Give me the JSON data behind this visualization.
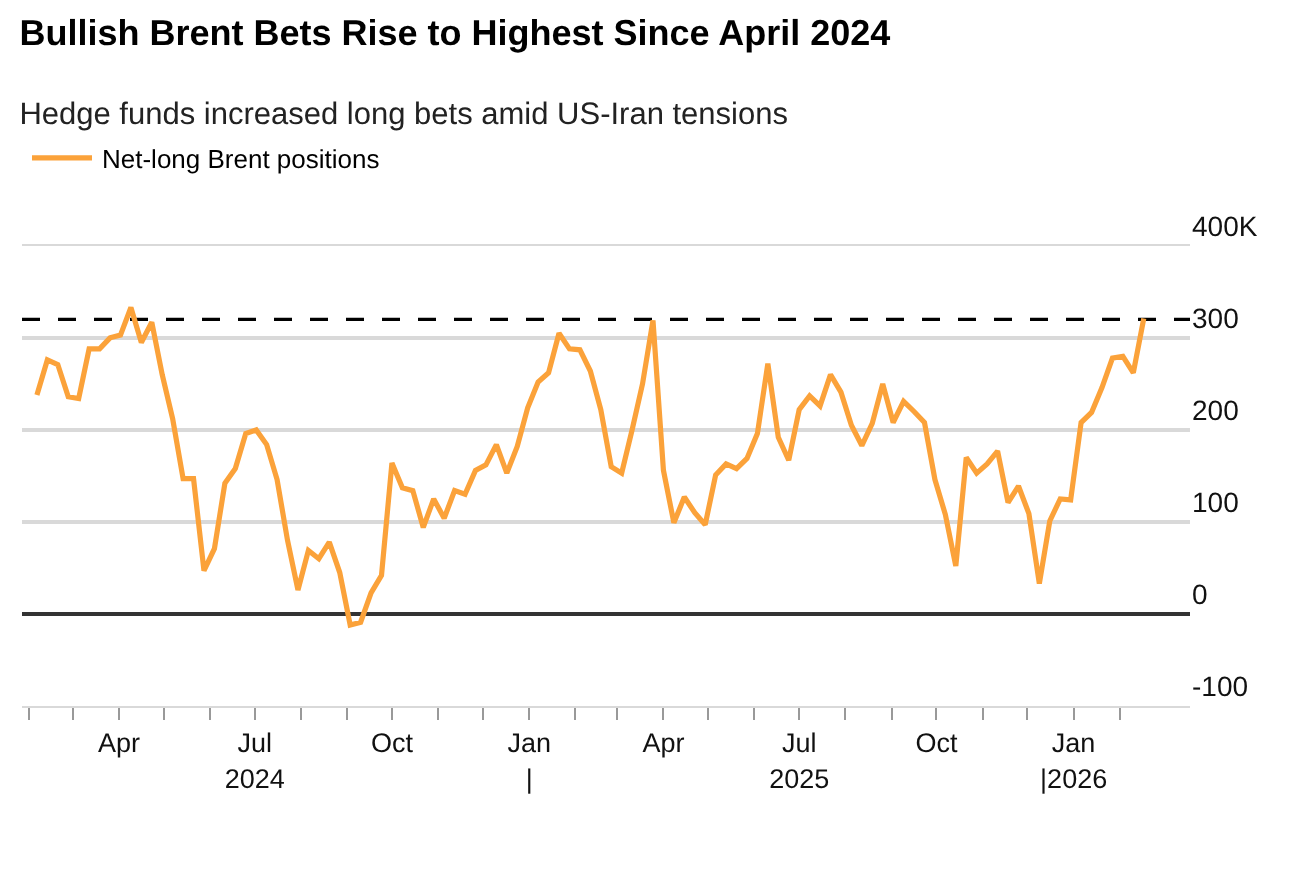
{
  "chart_data": {
    "type": "line",
    "title": "Bullish Brent Bets Rise to Highest Since April 2024",
    "subtitle": "Hedge funds increased long bets amid US-Iran tensions",
    "x": [
      "2024-02-06",
      "2024-02-13",
      "2024-02-20",
      "2024-02-27",
      "2024-03-05",
      "2024-03-12",
      "2024-03-19",
      "2024-03-26",
      "2024-04-02",
      "2024-04-09",
      "2024-04-16",
      "2024-04-23",
      "2024-04-30",
      "2024-05-07",
      "2024-05-14",
      "2024-05-21",
      "2024-05-28",
      "2024-06-04",
      "2024-06-11",
      "2024-06-18",
      "2024-06-25",
      "2024-07-02",
      "2024-07-09",
      "2024-07-16",
      "2024-07-23",
      "2024-07-30",
      "2024-08-06",
      "2024-08-13",
      "2024-08-20",
      "2024-08-27",
      "2024-09-03",
      "2024-09-10",
      "2024-09-17",
      "2024-09-24",
      "2024-10-01",
      "2024-10-08",
      "2024-10-15",
      "2024-10-22",
      "2024-10-29",
      "2024-11-05",
      "2024-11-12",
      "2024-11-19",
      "2024-11-26",
      "2024-12-03",
      "2024-12-10",
      "2024-12-17",
      "2024-12-24",
      "2024-12-31",
      "2025-01-07",
      "2025-01-14",
      "2025-01-21",
      "2025-01-28",
      "2025-02-04",
      "2025-02-11",
      "2025-02-18",
      "2025-02-25",
      "2025-03-04",
      "2025-03-11",
      "2025-03-18",
      "2025-03-25",
      "2025-04-01",
      "2025-04-08",
      "2025-04-15",
      "2025-04-22",
      "2025-04-29",
      "2025-05-06",
      "2025-05-13",
      "2025-05-20",
      "2025-05-27",
      "2025-06-03",
      "2025-06-10",
      "2025-06-17",
      "2025-06-24",
      "2025-07-01",
      "2025-07-08",
      "2025-07-15",
      "2025-07-22",
      "2025-07-29",
      "2025-08-05",
      "2025-08-12",
      "2025-08-19",
      "2025-08-26",
      "2025-09-02",
      "2025-09-09",
      "2025-09-16",
      "2025-09-23",
      "2025-09-30",
      "2025-10-07",
      "2025-10-14",
      "2025-10-21",
      "2025-10-28",
      "2025-11-04",
      "2025-11-11",
      "2025-11-18",
      "2025-11-25",
      "2025-12-02",
      "2025-12-09",
      "2025-12-16",
      "2025-12-23",
      "2025-12-30",
      "2026-01-06",
      "2026-01-13",
      "2026-01-20",
      "2026-01-27",
      "2026-02-03",
      "2026-02-10",
      "2026-02-17"
    ],
    "series": [
      {
        "name": "Net-long Brent positions",
        "color": "#fba23a",
        "values": [
          238,
          276,
          271,
          236,
          234,
          288,
          288,
          300,
          303,
          333,
          295,
          317,
          260,
          212,
          147,
          147,
          47,
          71,
          142,
          158,
          196,
          200,
          184,
          146,
          80,
          26,
          69,
          60,
          78,
          45,
          -12,
          -9,
          23,
          42,
          164,
          137,
          134,
          94,
          125,
          104,
          134,
          130,
          156,
          162,
          184,
          153,
          182,
          224,
          252,
          262,
          305,
          288,
          287,
          264,
          222,
          160,
          153,
          200,
          250,
          319,
          156,
          99,
          127,
          110,
          97,
          151,
          163,
          158,
          169,
          196,
          272,
          192,
          167,
          222,
          237,
          226,
          260,
          241,
          205,
          183,
          207,
          250,
          208,
          231,
          220,
          208,
          146,
          108,
          52,
          170,
          153,
          163,
          177,
          121,
          139,
          109,
          33,
          101,
          125,
          124,
          208,
          219,
          246,
          278,
          280,
          262,
          321
        ]
      }
    ],
    "xlim": [
      "2024-01-27",
      "2026-03-20"
    ],
    "xticks": [
      {
        "value": "2024-02-01",
        "label": null
      },
      {
        "value": "2024-03-01",
        "label": null
      },
      {
        "value": "2024-04-01",
        "label": "Apr"
      },
      {
        "value": "2024-05-01",
        "label": null
      },
      {
        "value": "2024-06-01",
        "label": null
      },
      {
        "value": "2024-07-01",
        "label": "Jul\n2024"
      },
      {
        "value": "2024-08-01",
        "label": null
      },
      {
        "value": "2024-09-01",
        "label": null
      },
      {
        "value": "2024-10-01",
        "label": "Oct"
      },
      {
        "value": "2024-11-01",
        "label": null
      },
      {
        "value": "2024-12-01",
        "label": null
      },
      {
        "value": "2025-01-01",
        "label": "Jan\n|"
      },
      {
        "value": "2025-02-01",
        "label": null
      },
      {
        "value": "2025-03-01",
        "label": null
      },
      {
        "value": "2025-04-01",
        "label": "Apr"
      },
      {
        "value": "2025-05-01",
        "label": null
      },
      {
        "value": "2025-06-01",
        "label": null
      },
      {
        "value": "2025-07-01",
        "label": "Jul\n2025"
      },
      {
        "value": "2025-08-01",
        "label": null
      },
      {
        "value": "2025-09-01",
        "label": null
      },
      {
        "value": "2025-10-01",
        "label": "Oct"
      },
      {
        "value": "2025-11-01",
        "label": null
      },
      {
        "value": "2025-12-01",
        "label": null
      },
      {
        "value": "2026-01-01",
        "label": "Jan\n|2026"
      },
      {
        "value": "2026-02-01",
        "label": null
      }
    ],
    "ylim": [
      -100,
      400
    ],
    "yticks": [
      -100,
      0,
      100,
      200,
      300,
      {
        "value": 400,
        "label": "400K"
      }
    ],
    "ref_lines": [
      {
        "axis": "y",
        "value": 320,
        "label": null,
        "color": "#000000",
        "line_style": "dashed"
      }
    ],
    "grid": "y",
    "legend": "top left",
    "marker": "none",
    "line_style": "solid"
  }
}
